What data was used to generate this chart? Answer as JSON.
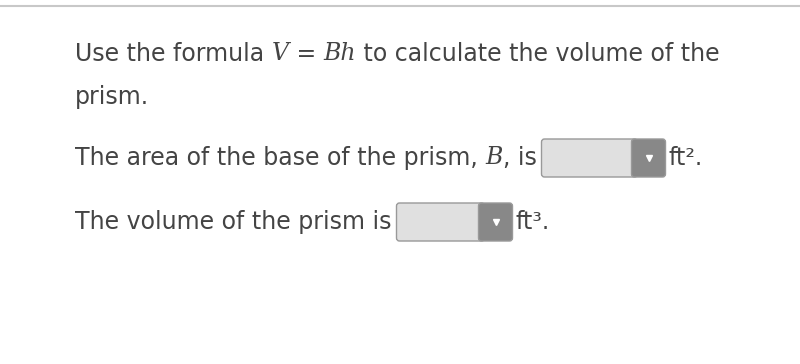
{
  "bg_color": "#ffffff",
  "top_border_color": "#c8c8c8",
  "text_color": "#444444",
  "text_fontsize": 17,
  "dropdown_main_bg": "#e0e0e0",
  "dropdown_arrow_bg": "#888888",
  "dropdown_border": "#999999",
  "arrow_color": "#ffffff",
  "fig_width": 8.0,
  "fig_height": 3.64,
  "line1_normal1": "Use the formula ",
  "line1_italic": "V",
  "line1_eq": " = ",
  "line1_italic2": "Bh",
  "line1_normal2": " to calculate the volume of the",
  "line2": "prism.",
  "line3_pre": "The area of the base of the prism, ",
  "line3_B": "B",
  "line3_post": ", is",
  "line3_unit": "ft².",
  "line4_pre": "The volume of the prism is",
  "line4_unit": "ft³."
}
